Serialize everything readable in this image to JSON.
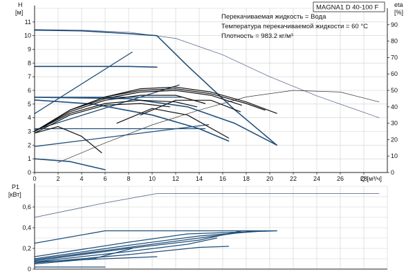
{
  "title": "MAGNA1 D 40-100 F",
  "info_lines": [
    "Перекачиваемая жидкость = Вода",
    "Температура перекачиваемой жидкости = 60 °C",
    "Плотность = 983.2 кг/м³"
  ],
  "colors": {
    "head": "#1f4e79",
    "eff": "#111111",
    "axis": "#222222",
    "grid": "#cfcfcf"
  },
  "chart_data": [
    {
      "type": "line",
      "name": "head-efficiency",
      "xlabel": "Q [м³/ч]",
      "ylabel_left": [
        "H",
        "[м]"
      ],
      "ylabel_right": [
        "eta",
        "[%]"
      ],
      "xlim": [
        0,
        30
      ],
      "ylim": [
        0,
        12
      ],
      "y2lim": [
        0,
        100
      ],
      "x_ticks": [
        "0",
        "2",
        "4",
        "6",
        "8",
        "10",
        "12",
        "14",
        "16",
        "18",
        "20",
        "22",
        "24",
        "26",
        "28"
      ],
      "y_ticks": [
        "0",
        "1",
        "2",
        "3",
        "4",
        "5",
        "6",
        "7",
        "8",
        "9",
        "10",
        "11"
      ],
      "y2_ticks": [
        "0",
        "10",
        "20",
        "30",
        "40",
        "50",
        "60",
        "70",
        "80",
        "90"
      ],
      "grid": true,
      "head_curves": [
        {
          "x": [
            0,
            4,
            8,
            10.4
          ],
          "y": [
            10.4,
            10.35,
            10.15,
            10.0
          ]
        },
        {
          "x": [
            10.4,
            13,
            17,
            20.6
          ],
          "y": [
            10.0,
            7.8,
            4.6,
            2.0
          ]
        },
        {
          "x": [
            0,
            8,
            10.4
          ],
          "y": [
            7.75,
            7.75,
            7.7
          ]
        },
        {
          "x": [
            0,
            8,
            13,
            17,
            20.6
          ],
          "y": [
            5.5,
            5.4,
            4.8,
            3.6,
            2.0
          ]
        },
        {
          "x": [
            0,
            5,
            10,
            14,
            16.5
          ],
          "y": [
            5.3,
            5.0,
            4.2,
            3.2,
            2.3
          ]
        },
        {
          "x": [
            0,
            3,
            6
          ],
          "y": [
            1.0,
            0.8,
            0.2
          ]
        }
      ],
      "system_curves": [
        {
          "x": [
            0,
            8.3
          ],
          "y": [
            4.3,
            8.8
          ]
        },
        {
          "x": [
            0,
            12.3
          ],
          "y": [
            3.1,
            6.4
          ]
        },
        {
          "x": [
            0,
            14.8
          ],
          "y": [
            1.9,
            3.5
          ]
        }
      ],
      "flat_lines": [
        {
          "x": [
            0,
            12.5
          ],
          "y": [
            5.5,
            5.5
          ]
        },
        {
          "x": [
            0,
            14.5
          ],
          "y": [
            3.2,
            3.2
          ]
        }
      ],
      "max_curve": {
        "x": [
          0,
          4,
          8,
          12,
          16,
          20,
          24,
          29.3
        ],
        "y": [
          10.45,
          10.4,
          10.25,
          9.8,
          8.6,
          7.0,
          5.6,
          4.0
        ]
      },
      "eff_reference": {
        "x": [
          2,
          6,
          10,
          14,
          18,
          22,
          26,
          29.3
        ],
        "y": [
          6,
          18,
          29,
          38,
          46,
          50,
          49,
          43
        ]
      },
      "efficiency_curves": [
        {
          "x": [
            0,
            3,
            6,
            9,
            12,
            15,
            18,
            20.6
          ],
          "y": [
            25,
            38,
            46,
            51,
            52,
            49,
            43,
            36
          ]
        },
        {
          "x": [
            0,
            3,
            6,
            9,
            12,
            15,
            18,
            19.6
          ],
          "y": [
            25,
            38,
            46,
            50,
            51,
            48,
            42,
            38
          ]
        },
        {
          "x": [
            0,
            3,
            6,
            9,
            12,
            15,
            17.6
          ],
          "y": [
            25,
            38,
            45,
            49,
            50,
            47,
            41
          ]
        },
        {
          "x": [
            0,
            3,
            6,
            9,
            12,
            14.5
          ],
          "y": [
            25,
            37,
            44,
            47,
            47,
            42
          ]
        },
        {
          "x": [
            0,
            3,
            6,
            9,
            12,
            13.8
          ],
          "y": [
            25,
            36,
            42,
            44,
            43,
            40
          ]
        },
        {
          "x": [
            0,
            3,
            6,
            9,
            11.5
          ],
          "y": [
            24,
            35,
            41,
            42,
            40
          ]
        },
        {
          "x": [
            0,
            2,
            4,
            5.7
          ],
          "y": [
            24,
            28,
            22,
            12
          ]
        },
        {
          "x": [
            7,
            10,
            13,
            16.5
          ],
          "y": [
            30,
            39,
            35,
            21
          ]
        },
        {
          "x": [
            9,
            12,
            15,
            17.5
          ],
          "y": [
            35,
            44,
            44,
            37
          ]
        }
      ]
    },
    {
      "type": "line",
      "name": "power",
      "xlabel": "",
      "ylabel_left": [
        "P1",
        "[кВт]"
      ],
      "xlim": [
        0,
        30
      ],
      "ylim": [
        0,
        0.8
      ],
      "y_ticks": [
        "0",
        "0,2",
        "0,4",
        "0,6"
      ],
      "grid": true,
      "power_curves": [
        {
          "x": [
            0,
            6,
            10.4,
            29.3
          ],
          "y": [
            0.5,
            0.64,
            0.73,
            0.73
          ]
        },
        {
          "x": [
            0,
            6,
            10.4,
            20.6
          ],
          "y": [
            0.25,
            0.37,
            0.37,
            0.37
          ]
        },
        {
          "x": [
            0,
            8,
            13,
            20.6
          ],
          "y": [
            0.12,
            0.26,
            0.34,
            0.37
          ]
        },
        {
          "x": [
            0,
            8,
            14,
            19.6
          ],
          "y": [
            0.1,
            0.23,
            0.32,
            0.37
          ]
        },
        {
          "x": [
            0,
            8,
            14,
            18.6
          ],
          "y": [
            0.09,
            0.21,
            0.3,
            0.37
          ]
        },
        {
          "x": [
            0,
            8,
            14,
            17.6
          ],
          "y": [
            0.08,
            0.2,
            0.28,
            0.37
          ]
        },
        {
          "x": [
            0,
            8,
            13,
            15.5
          ],
          "y": [
            0.07,
            0.17,
            0.24,
            0.3
          ]
        },
        {
          "x": [
            0,
            8,
            14,
            16.5
          ],
          "y": [
            0.06,
            0.14,
            0.21,
            0.22
          ]
        },
        {
          "x": [
            0,
            6,
            10.4
          ],
          "y": [
            0.07,
            0.1,
            0.12
          ]
        },
        {
          "x": [
            0,
            5,
            8.3
          ],
          "y": [
            0.05,
            0.1,
            0.2
          ]
        },
        {
          "x": [
            0,
            6
          ],
          "y": [
            0.02,
            0.02
          ]
        }
      ]
    }
  ]
}
